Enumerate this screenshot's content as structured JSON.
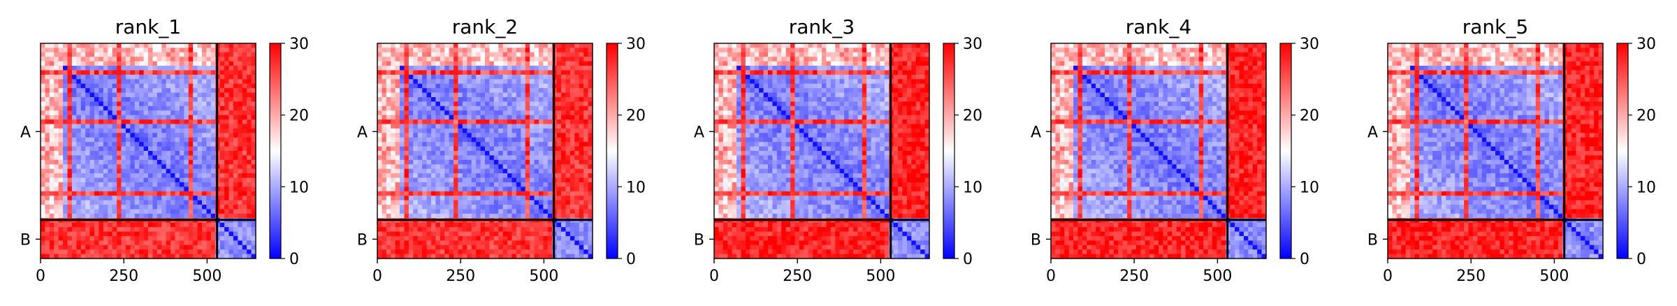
{
  "figure": {
    "colorbar_ticks": [
      "0",
      "10",
      "20",
      "30"
    ],
    "colormap": {
      "low": "#0000ff",
      "mid": "#ffffff",
      "high": "#ff0000"
    }
  },
  "chart_data": [
    {
      "type": "heatmap",
      "title": "rank_1",
      "xlabel": "",
      "ylabel": "",
      "x_ticks": [
        0,
        250,
        500
      ],
      "y_ticks": [
        "A",
        "B"
      ],
      "xlim": [
        0,
        646
      ],
      "ylim": [
        646,
        0
      ],
      "chains": [
        {
          "name": "A",
          "start": 0,
          "end": 530
        },
        {
          "name": "B",
          "start": 530,
          "end": 646
        }
      ],
      "colorbar": {
        "vmin": 0,
        "vmax": 30,
        "ticks": [
          0,
          10,
          20,
          30
        ]
      },
      "summary": {
        "intra_A_mean": 7,
        "intra_B_mean": 8,
        "inter_chain_mean": 27,
        "stripes_high_at": [
          90,
          240,
          455
        ]
      }
    },
    {
      "type": "heatmap",
      "title": "rank_2",
      "xlabel": "",
      "ylabel": "",
      "x_ticks": [
        0,
        250,
        500
      ],
      "y_ticks": [
        "A",
        "B"
      ],
      "xlim": [
        0,
        646
      ],
      "ylim": [
        646,
        0
      ],
      "chains": [
        {
          "name": "A",
          "start": 0,
          "end": 530
        },
        {
          "name": "B",
          "start": 530,
          "end": 646
        }
      ],
      "colorbar": {
        "vmin": 0,
        "vmax": 30,
        "ticks": [
          0,
          10,
          20,
          30
        ]
      },
      "summary": {
        "intra_A_mean": 7,
        "intra_B_mean": 8,
        "inter_chain_mean": 27,
        "stripes_high_at": [
          90,
          240,
          455
        ]
      }
    },
    {
      "type": "heatmap",
      "title": "rank_3",
      "xlabel": "",
      "ylabel": "",
      "x_ticks": [
        0,
        250,
        500
      ],
      "y_ticks": [
        "A",
        "B"
      ],
      "xlim": [
        0,
        646
      ],
      "ylim": [
        646,
        0
      ],
      "chains": [
        {
          "name": "A",
          "start": 0,
          "end": 530
        },
        {
          "name": "B",
          "start": 530,
          "end": 646
        }
      ],
      "colorbar": {
        "vmin": 0,
        "vmax": 30,
        "ticks": [
          0,
          10,
          20,
          30
        ]
      },
      "summary": {
        "intra_A_mean": 7,
        "intra_B_mean": 8,
        "inter_chain_mean": 28,
        "stripes_high_at": [
          90,
          240,
          455
        ]
      }
    },
    {
      "type": "heatmap",
      "title": "rank_4",
      "xlabel": "",
      "ylabel": "",
      "x_ticks": [
        0,
        250,
        500
      ],
      "y_ticks": [
        "A",
        "B"
      ],
      "xlim": [
        0,
        646
      ],
      "ylim": [
        646,
        0
      ],
      "chains": [
        {
          "name": "A",
          "start": 0,
          "end": 530
        },
        {
          "name": "B",
          "start": 530,
          "end": 646
        }
      ],
      "colorbar": {
        "vmin": 0,
        "vmax": 30,
        "ticks": [
          0,
          10,
          20,
          30
        ]
      },
      "summary": {
        "intra_A_mean": 7,
        "intra_B_mean": 8,
        "inter_chain_mean": 28,
        "stripes_high_at": [
          90,
          240,
          455
        ]
      }
    },
    {
      "type": "heatmap",
      "title": "rank_5",
      "xlabel": "",
      "ylabel": "",
      "x_ticks": [
        0,
        250,
        500
      ],
      "y_ticks": [
        "A",
        "B"
      ],
      "xlim": [
        0,
        646
      ],
      "ylim": [
        646,
        0
      ],
      "chains": [
        {
          "name": "A",
          "start": 0,
          "end": 530
        },
        {
          "name": "B",
          "start": 530,
          "end": 646
        }
      ],
      "colorbar": {
        "vmin": 0,
        "vmax": 30,
        "ticks": [
          0,
          10,
          20,
          30
        ]
      },
      "summary": {
        "intra_A_mean": 7,
        "intra_B_mean": 8,
        "inter_chain_mean": 28,
        "stripes_high_at": [
          90,
          240,
          455
        ]
      }
    }
  ]
}
